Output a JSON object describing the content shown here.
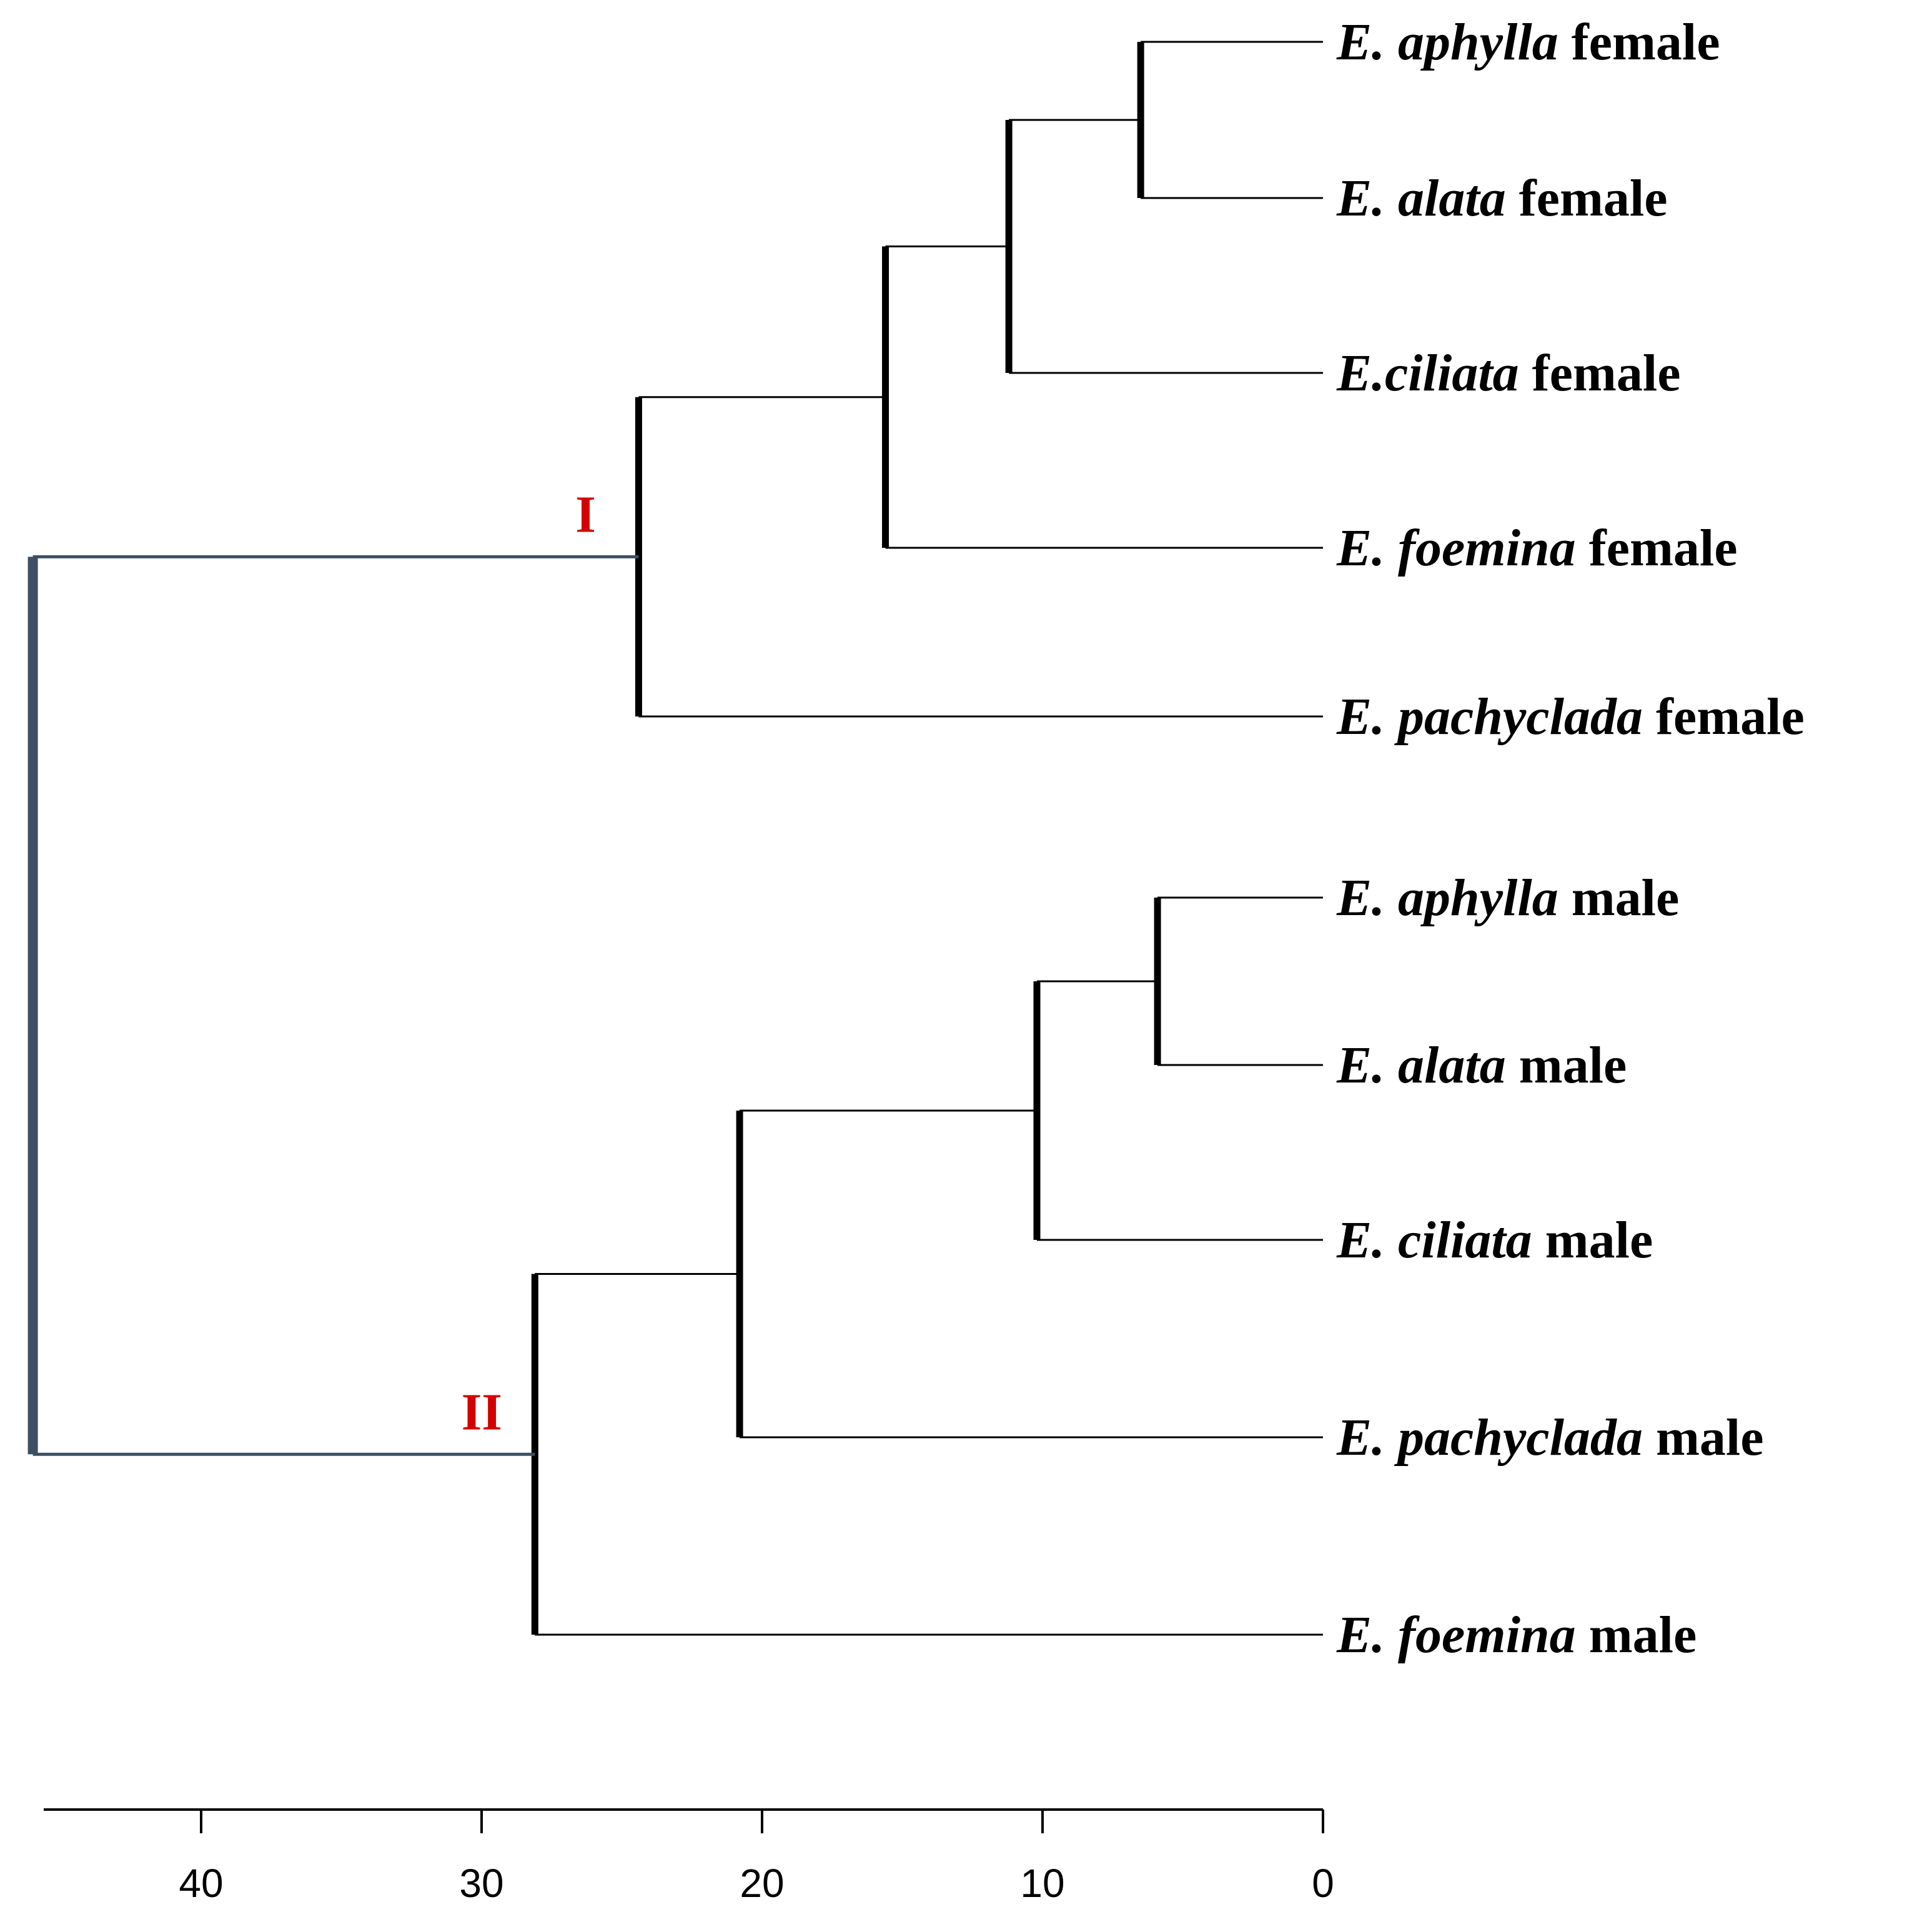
{
  "chart_data": {
    "type": "dendrogram",
    "orientation": "root-left, leaves-right",
    "axis": {
      "ticks": [
        40,
        30,
        20,
        10,
        0
      ],
      "range": [
        46,
        0
      ]
    },
    "colors": {
      "branch": "#000000",
      "root": "#3d4f63",
      "clade_label": "#d40000"
    },
    "leaves": [
      {
        "id": "aph_f",
        "genus": "E. aphylla",
        "sex": "female"
      },
      {
        "id": "ala_f",
        "genus": "E. alata",
        "sex": "female"
      },
      {
        "id": "cil_f",
        "genus": "E.ciliata",
        "sex": "female"
      },
      {
        "id": "foe_f",
        "genus": "E. foemina",
        "sex": "female"
      },
      {
        "id": "pac_f",
        "genus": "E. pachyclada",
        "sex": "female"
      },
      {
        "id": "aph_m",
        "genus": "E. aphylla",
        "sex": "male"
      },
      {
        "id": "ala_m",
        "genus": "E. alata",
        "sex": "male"
      },
      {
        "id": "cil_m",
        "genus": "E. ciliata",
        "sex": "male"
      },
      {
        "id": "pac_m",
        "genus": "E. pachyclada",
        "sex": "male"
      },
      {
        "id": "foe_m",
        "genus": "E. foemina",
        "sex": "male"
      }
    ],
    "merges": [
      {
        "id": "f1",
        "children": [
          "aph_f",
          "ala_f"
        ],
        "height": 6.5
      },
      {
        "id": "f2",
        "children": [
          "f1",
          "cil_f"
        ],
        "height": 11.2
      },
      {
        "id": "f3",
        "children": [
          "f2",
          "foe_f"
        ],
        "height": 15.6
      },
      {
        "id": "I",
        "children": [
          "f3",
          "pac_f"
        ],
        "height": 24.4,
        "label": "I"
      },
      {
        "id": "m1",
        "children": [
          "aph_m",
          "ala_m"
        ],
        "height": 5.9
      },
      {
        "id": "m2",
        "children": [
          "m1",
          "cil_m"
        ],
        "height": 10.2
      },
      {
        "id": "m3",
        "children": [
          "m2",
          "pac_m"
        ],
        "height": 20.8
      },
      {
        "id": "II",
        "children": [
          "m3",
          "foe_m"
        ],
        "height": 28.1,
        "label": "II"
      },
      {
        "id": "root",
        "children": [
          "I",
          "II"
        ],
        "height": 46
      }
    ]
  }
}
